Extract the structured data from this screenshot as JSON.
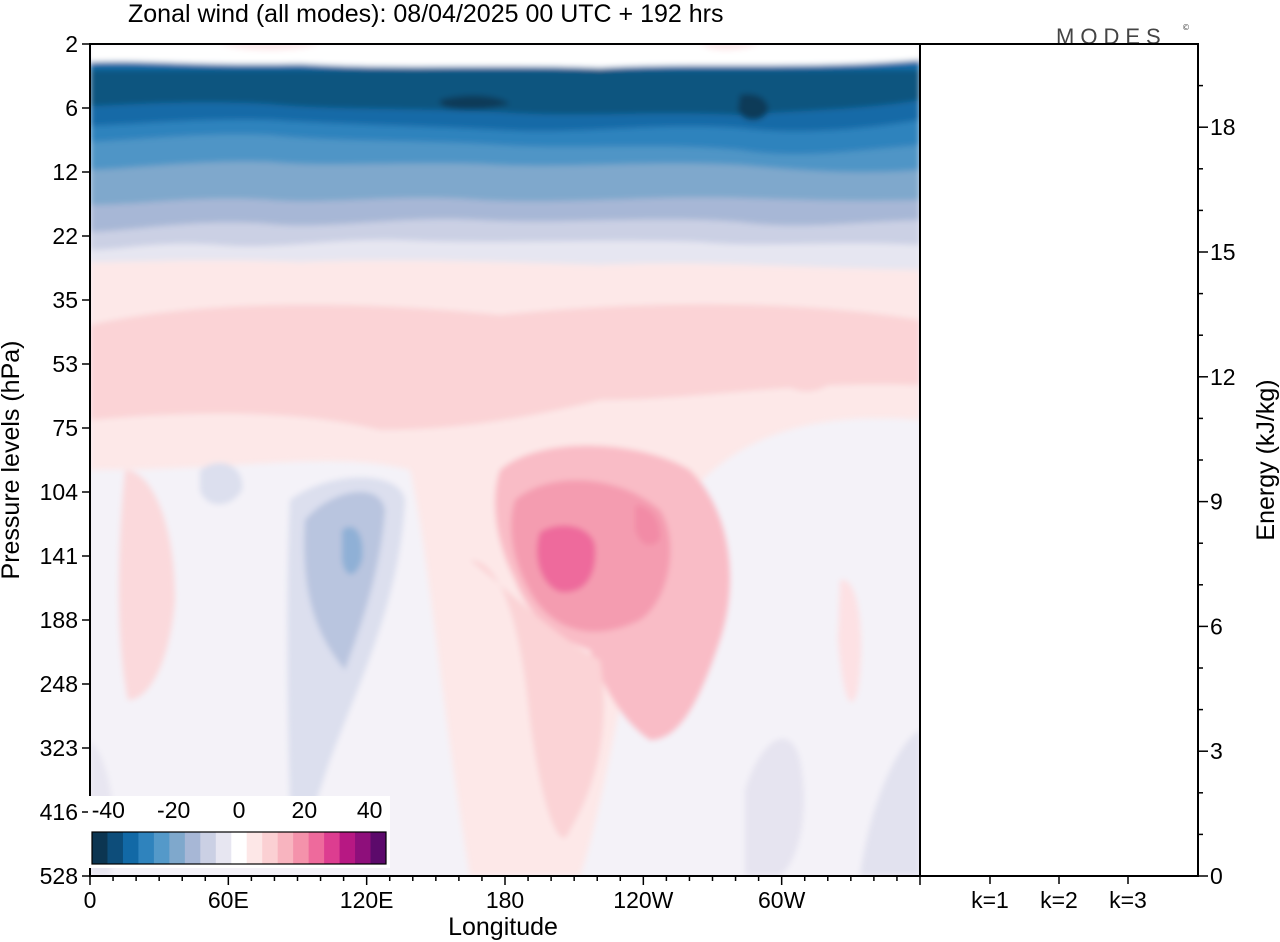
{
  "logo_text": "MODES",
  "chart_data": [
    {
      "type": "heatmap",
      "title": "Zonal wind (all modes):  08/04/2025  00 UTC  + 192 hrs",
      "xlabel": "Longitude",
      "ylabel": "Pressure levels (hPa)",
      "x_ticks": [
        "0",
        "60E",
        "120E",
        "180",
        "120W",
        "60W"
      ],
      "x_tick_values": [
        0,
        60,
        120,
        180,
        240,
        300
      ],
      "xlim": [
        0,
        360
      ],
      "y_ticks": [
        "2",
        "6",
        "12",
        "22",
        "35",
        "53",
        "75",
        "104",
        "141",
        "188",
        "248",
        "323",
        "416",
        "528"
      ],
      "colorbar": {
        "ticks": [
          "-40",
          "-20",
          "0",
          "20",
          "40"
        ],
        "range": [
          -45,
          45
        ],
        "colors": [
          "#0c3551",
          "#0d4d7a",
          "#1269a6",
          "#2f83bd",
          "#5499c9",
          "#7fa8cc",
          "#a7b7d6",
          "#cbd0e4",
          "#e7e6f1",
          "#ffffff",
          "#fde7e7",
          "#fbd0d3",
          "#f8b4bf",
          "#f492ab",
          "#ee6a9c",
          "#dd3d90",
          "#b71883",
          "#8e0f7b",
          "#5c0a6b"
        ]
      },
      "grid": false
    },
    {
      "type": "bar",
      "categories": [
        "k=1",
        "k=2",
        "k=3"
      ],
      "values": [
        0.02,
        0.02,
        0.02
      ],
      "ylabel": "Energy (kJ/kg)",
      "y_ticks": [
        "0",
        "3",
        "6",
        "9",
        "12",
        "15",
        "18"
      ],
      "ylim": [
        0,
        20
      ]
    }
  ]
}
